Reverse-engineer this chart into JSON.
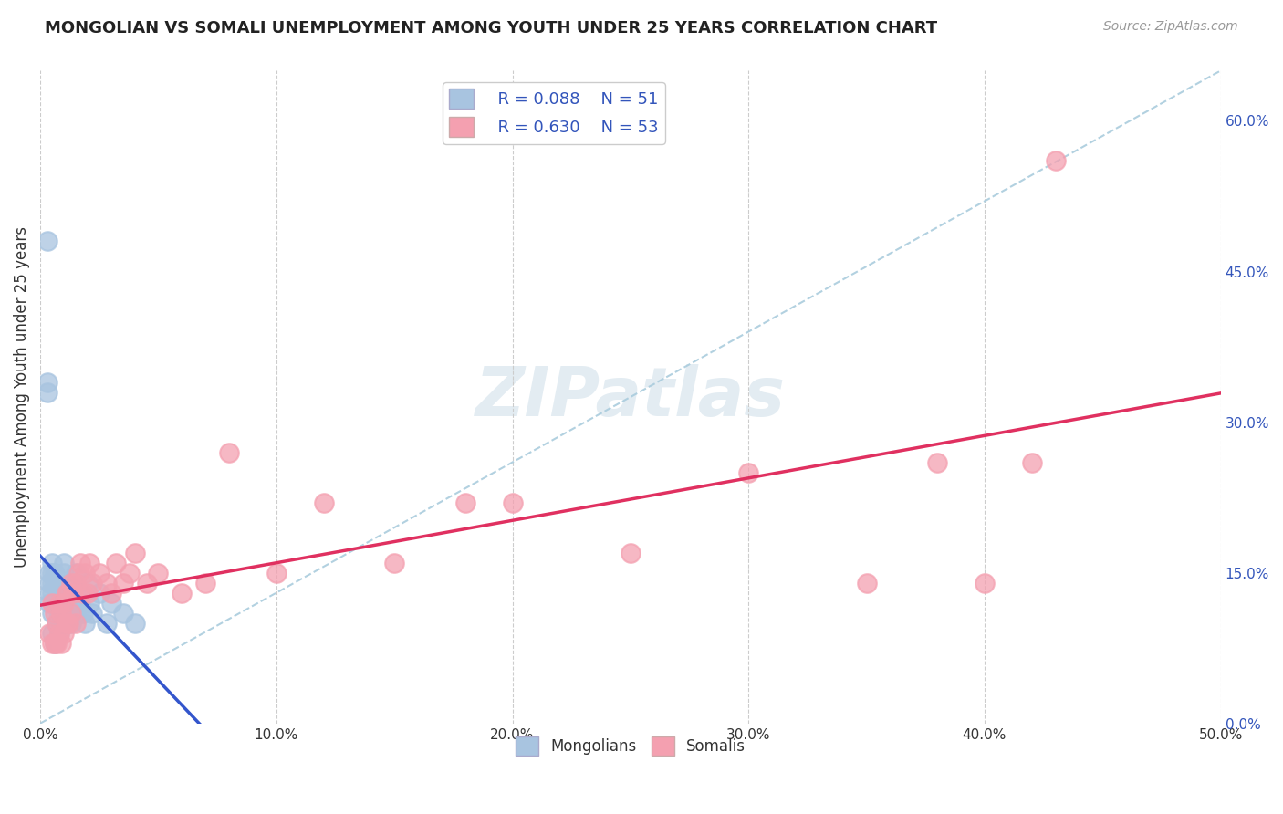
{
  "title": "MONGOLIAN VS SOMALI UNEMPLOYMENT AMONG YOUTH UNDER 25 YEARS CORRELATION CHART",
  "source": "Source: ZipAtlas.com",
  "ylabel": "Unemployment Among Youth under 25 years",
  "xlim": [
    0.0,
    0.5
  ],
  "ylim": [
    0.0,
    0.65
  ],
  "xticklabels": [
    "0.0%",
    "10.0%",
    "20.0%",
    "30.0%",
    "40.0%",
    "50.0%"
  ],
  "xtick_vals": [
    0.0,
    0.1,
    0.2,
    0.3,
    0.4,
    0.5
  ],
  "yticks_right": [
    0.0,
    0.15,
    0.3,
    0.45,
    0.6
  ],
  "yticklabels_right": [
    "0.0%",
    "15.0%",
    "30.0%",
    "45.0%",
    "60.0%"
  ],
  "mongolian_color": "#a8c4e0",
  "somali_color": "#f4a0b0",
  "mongolian_line_color": "#3355cc",
  "somali_line_color": "#e03060",
  "dashed_line_color": "#aaccdd",
  "mongolian_R": 0.088,
  "mongolian_N": 51,
  "somali_R": 0.63,
  "somali_N": 53,
  "legend_label_mongolian": "Mongolians",
  "legend_label_somali": "Somalis",
  "watermark": "ZIPatlas",
  "background_color": "#ffffff",
  "grid_color": "#cccccc",
  "mongolian_x": [
    0.003,
    0.003,
    0.003,
    0.004,
    0.004,
    0.004,
    0.004,
    0.005,
    0.005,
    0.005,
    0.005,
    0.005,
    0.005,
    0.006,
    0.006,
    0.006,
    0.006,
    0.007,
    0.007,
    0.007,
    0.008,
    0.008,
    0.008,
    0.008,
    0.009,
    0.009,
    0.01,
    0.01,
    0.01,
    0.01,
    0.011,
    0.011,
    0.012,
    0.012,
    0.013,
    0.013,
    0.014,
    0.015,
    0.015,
    0.016,
    0.017,
    0.018,
    0.019,
    0.02,
    0.021,
    0.022,
    0.025,
    0.028,
    0.03,
    0.035,
    0.04
  ],
  "mongolian_y": [
    0.48,
    0.34,
    0.33,
    0.15,
    0.14,
    0.13,
    0.12,
    0.16,
    0.15,
    0.14,
    0.13,
    0.11,
    0.09,
    0.15,
    0.14,
    0.12,
    0.08,
    0.14,
    0.13,
    0.1,
    0.13,
    0.12,
    0.11,
    0.09,
    0.12,
    0.1,
    0.16,
    0.15,
    0.13,
    0.11,
    0.12,
    0.1,
    0.14,
    0.11,
    0.13,
    0.1,
    0.12,
    0.15,
    0.11,
    0.13,
    0.12,
    0.11,
    0.1,
    0.14,
    0.12,
    0.11,
    0.13,
    0.1,
    0.12,
    0.11,
    0.1
  ],
  "somali_x": [
    0.004,
    0.005,
    0.005,
    0.006,
    0.006,
    0.007,
    0.007,
    0.008,
    0.008,
    0.009,
    0.009,
    0.01,
    0.01,
    0.011,
    0.011,
    0.012,
    0.012,
    0.013,
    0.013,
    0.014,
    0.015,
    0.015,
    0.016,
    0.017,
    0.018,
    0.019,
    0.02,
    0.021,
    0.022,
    0.025,
    0.028,
    0.03,
    0.032,
    0.035,
    0.038,
    0.04,
    0.045,
    0.05,
    0.06,
    0.07,
    0.08,
    0.1,
    0.12,
    0.15,
    0.18,
    0.2,
    0.25,
    0.3,
    0.35,
    0.38,
    0.4,
    0.42,
    0.43
  ],
  "somali_y": [
    0.09,
    0.12,
    0.08,
    0.11,
    0.08,
    0.1,
    0.08,
    0.12,
    0.09,
    0.11,
    0.08,
    0.12,
    0.09,
    0.13,
    0.1,
    0.13,
    0.1,
    0.14,
    0.11,
    0.13,
    0.14,
    0.1,
    0.15,
    0.16,
    0.13,
    0.15,
    0.13,
    0.16,
    0.14,
    0.15,
    0.14,
    0.13,
    0.16,
    0.14,
    0.15,
    0.17,
    0.14,
    0.15,
    0.13,
    0.14,
    0.27,
    0.15,
    0.22,
    0.16,
    0.22,
    0.22,
    0.17,
    0.25,
    0.14,
    0.26,
    0.14,
    0.26,
    0.56
  ]
}
